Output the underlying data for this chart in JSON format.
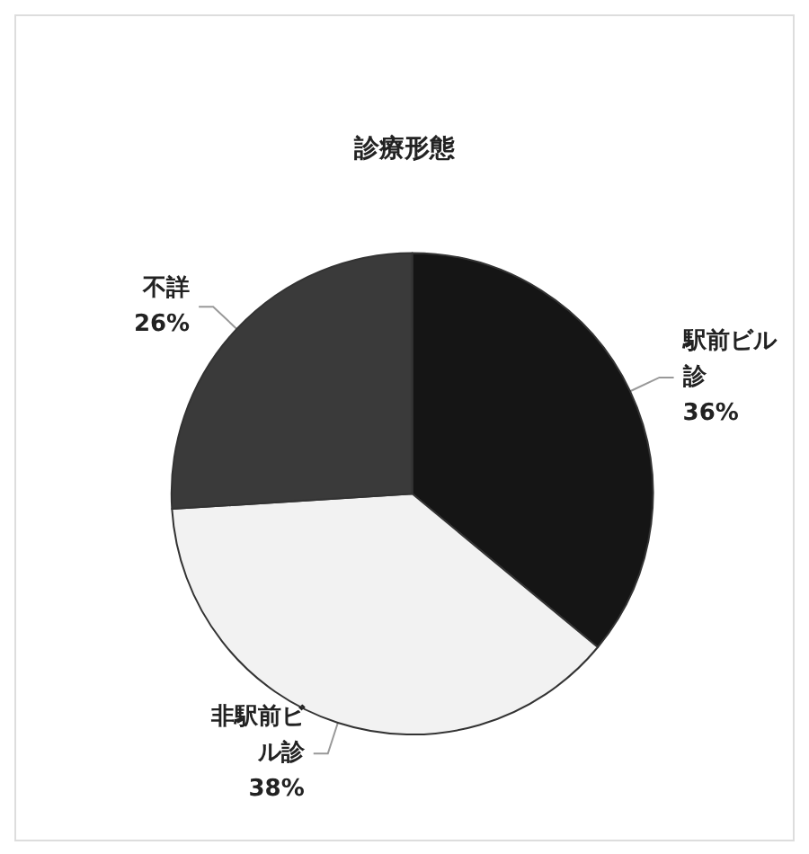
{
  "chart_data": {
    "type": "pie",
    "title": "診療形態",
    "categories": [
      "駅前ビル診",
      "非駅前ビル診",
      "不詳"
    ],
    "values": [
      36,
      38,
      26
    ],
    "value_labels": [
      "36%",
      "38%",
      "26%"
    ],
    "colors": [
      "#151515",
      "#f2f2f2",
      "#3a3a3a"
    ],
    "legend": false
  }
}
